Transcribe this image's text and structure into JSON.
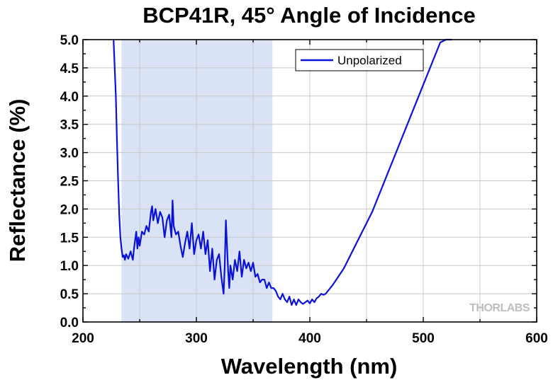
{
  "chart_data": {
    "type": "line",
    "title": "BCP41R, 45° Angle of Incidence",
    "xlabel": "Wavelength (nm)",
    "ylabel": "Reflectance (%)",
    "xlim": [
      200,
      600
    ],
    "ylim": [
      0,
      5.0
    ],
    "x_ticks": [
      200,
      300,
      400,
      500,
      600
    ],
    "x_tick_labels": [
      "200",
      "300",
      "400",
      "500",
      "600"
    ],
    "y_ticks": [
      0,
      0.5,
      1.0,
      1.5,
      2.0,
      2.5,
      3.0,
      3.5,
      4.0,
      4.5,
      5.0
    ],
    "y_tick_labels": [
      "0.0",
      "0.5",
      "1.0",
      "1.5",
      "2.0",
      "2.5",
      "3.0",
      "3.5",
      "4.0",
      "4.5",
      "5.0"
    ],
    "grid": true,
    "legend_position": "top-right",
    "shaded_band": {
      "x_start": 234,
      "x_end": 367,
      "color": "#dae3f5"
    },
    "watermark": "THORLABS",
    "series": [
      {
        "name": "Unpolarized",
        "color": "#0a12d8",
        "x": [
          227,
          229,
          230,
          231,
          232,
          233,
          234,
          235,
          236,
          237,
          238,
          240,
          242,
          244,
          245,
          246,
          247,
          248,
          249,
          250,
          252,
          254,
          256,
          258,
          260,
          261,
          262,
          264,
          266,
          268,
          270,
          272,
          274,
          276,
          278,
          279,
          280,
          282,
          284,
          286,
          288,
          290,
          292,
          294,
          296,
          298,
          300,
          302,
          304,
          306,
          308,
          310,
          312,
          314,
          316,
          318,
          320,
          322,
          324,
          325,
          326,
          328,
          329,
          330,
          332,
          334,
          336,
          338,
          340,
          342,
          344,
          346,
          348,
          350,
          352,
          354,
          356,
          358,
          360,
          362,
          364,
          366,
          368,
          370,
          372,
          374,
          376,
          378,
          380,
          382,
          384,
          386,
          388,
          390,
          392,
          394,
          396,
          398,
          400,
          402,
          404,
          406,
          408,
          410,
          412,
          414,
          416,
          418,
          420,
          425,
          430,
          435,
          440,
          445,
          450,
          455,
          460,
          465,
          470,
          475,
          480,
          485,
          490,
          495,
          500,
          505,
          510,
          515,
          520,
          525
        ],
        "y": [
          5.0,
          4.0,
          3.2,
          2.5,
          1.9,
          1.5,
          1.3,
          1.15,
          1.18,
          1.1,
          1.2,
          1.12,
          1.25,
          1.1,
          1.3,
          1.45,
          1.6,
          1.3,
          1.5,
          1.35,
          1.6,
          1.55,
          1.7,
          1.6,
          1.95,
          2.05,
          1.8,
          2.0,
          1.75,
          1.95,
          1.85,
          1.5,
          1.8,
          1.9,
          1.5,
          2.15,
          1.7,
          1.55,
          1.6,
          1.35,
          1.15,
          1.4,
          1.6,
          1.3,
          1.75,
          1.2,
          1.45,
          1.55,
          1.3,
          1.6,
          1.2,
          1.45,
          0.9,
          1.3,
          0.75,
          1.1,
          1.2,
          0.8,
          0.5,
          1.0,
          1.8,
          0.9,
          0.6,
          1.0,
          0.75,
          1.1,
          0.9,
          1.25,
          0.8,
          1.1,
          0.95,
          1.05,
          0.9,
          1.05,
          0.8,
          0.85,
          0.7,
          0.75,
          0.75,
          0.6,
          0.7,
          0.6,
          0.6,
          0.55,
          0.45,
          0.4,
          0.5,
          0.4,
          0.35,
          0.45,
          0.3,
          0.4,
          0.3,
          0.4,
          0.35,
          0.32,
          0.35,
          0.38,
          0.33,
          0.4,
          0.35,
          0.42,
          0.45,
          0.5,
          0.48,
          0.5,
          0.55,
          0.6,
          0.65,
          0.8,
          0.95,
          1.15,
          1.35,
          1.55,
          1.75,
          1.95,
          2.2,
          2.45,
          2.7,
          2.95,
          3.2,
          3.45,
          3.7,
          3.95,
          4.2,
          4.45,
          4.7,
          4.95,
          5.0,
          5.0
        ]
      }
    ]
  }
}
